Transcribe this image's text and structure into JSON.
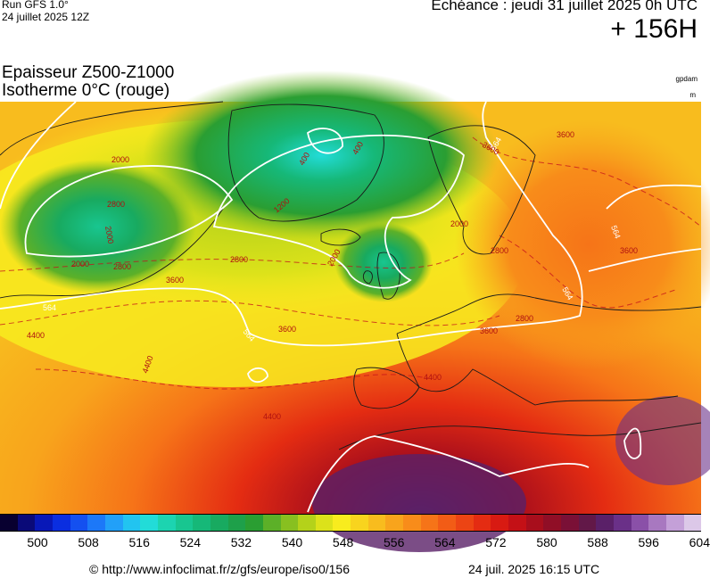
{
  "header": {
    "run_line1": "Run GFS 1.0°",
    "run_line2": "24 juillet 2025 12Z",
    "echeance": "Echéance : jeudi 31 juillet 2025 0h UTC",
    "lead_time": "+ 156H"
  },
  "title": {
    "line1": "Epaisseur Z500-Z1000",
    "line2": "Isotherme 0°C (rouge)"
  },
  "units": {
    "top": "gpdam",
    "bottom": "m"
  },
  "map_labels": {
    "white_contours": [
      "564",
      "564",
      "564",
      "564",
      "564"
    ],
    "red_contours": [
      "2000",
      "2000",
      "2000",
      "2000",
      "2800",
      "2800",
      "2800",
      "2800",
      "3600",
      "3600",
      "3600",
      "3600",
      "3600",
      "4400",
      "4400",
      "4400",
      "4400",
      "1200",
      "400",
      "400",
      "3600",
      "2000",
      "2800"
    ]
  },
  "colorbar": {
    "colors": [
      "#080030",
      "#0a0a78",
      "#0818b8",
      "#0a2ee0",
      "#1450f0",
      "#1c78f8",
      "#22a0f8",
      "#22c4f0",
      "#22dcd8",
      "#1cd4b0",
      "#18c690",
      "#16b878",
      "#18aa60",
      "#1ea04a",
      "#2a9e32",
      "#5cb028",
      "#88c020",
      "#b4d21a",
      "#dce21a",
      "#f8ec1e",
      "#f8d41e",
      "#f8bc1e",
      "#f8a41c",
      "#f88c1a",
      "#f67418",
      "#f25c16",
      "#ec4414",
      "#e42c12",
      "#d81a12",
      "#c41016",
      "#a80e1c",
      "#900e26",
      "#7a1036",
      "#621848",
      "#5a2068",
      "#6a3088",
      "#8a50a8",
      "#a878c0",
      "#c4a0d8",
      "#dcc8e8"
    ],
    "tick_labels": [
      "500",
      "508",
      "516",
      "524",
      "532",
      "540",
      "548",
      "556",
      "564",
      "572",
      "580",
      "588",
      "596",
      "604"
    ]
  },
  "footer": {
    "url": "© http://www.infoclimat.fr/z/gfs/europe/iso0/156",
    "date": "24 juil. 2025 16:15 UTC"
  }
}
